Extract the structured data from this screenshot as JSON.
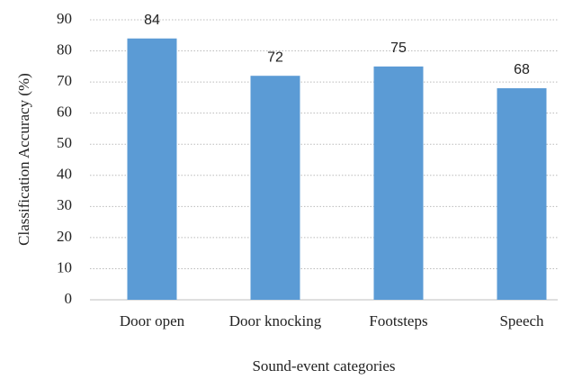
{
  "chart_data": {
    "type": "bar",
    "x_label": "Sound-event categories",
    "y_label": "Classification Accuracy (%)",
    "categories": [
      "Door open",
      "Door knocking",
      "Footsteps",
      "Speech"
    ],
    "values": [
      84,
      72,
      75,
      68
    ],
    "color": "#5b9bd5",
    "ylim": [
      0,
      90
    ],
    "yticks": [
      0,
      10,
      20,
      30,
      40,
      50,
      60,
      70,
      80,
      90
    ],
    "grid": true
  }
}
